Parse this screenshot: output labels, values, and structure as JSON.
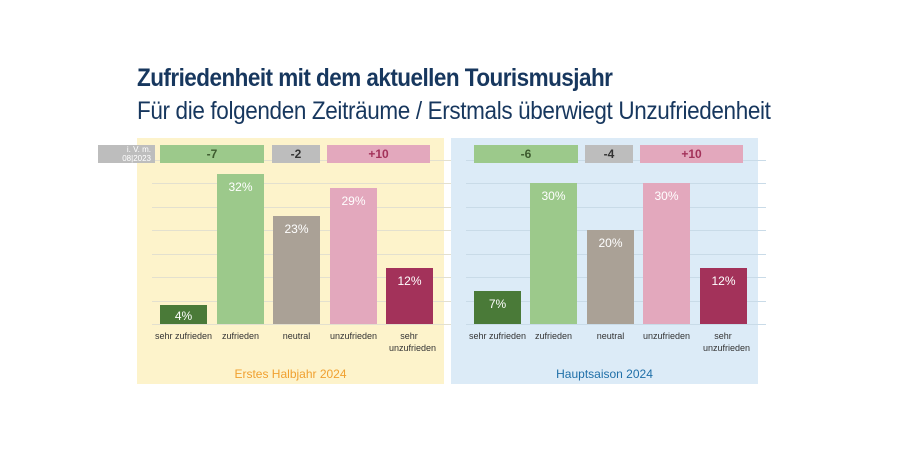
{
  "title": "Zufriedenheit mit dem aktuellen Tourismusjahr",
  "subtitle": "Für die folgenden Zeiträume / Erstmals überwiegt Unzufriedenheit",
  "comparison_note": {
    "line1": "i. V. m.",
    "line2": "08|2023"
  },
  "colors": {
    "sehr_zufrieden": "#4a7a38",
    "zufrieden": "#9cc98b",
    "neutral": "#aaa196",
    "unzufrieden": "#e3a8bd",
    "sehr_unzufrieden": "#a3325a",
    "panel_left": "#fdf3cb",
    "panel_right": "#dcebf7",
    "title": "#17375e"
  },
  "chart_data": [
    {
      "type": "bar",
      "title": "Erstes Halbjahr 2024",
      "title_color": "#f0a030",
      "categories": [
        "sehr zufrieden",
        "zufrieden",
        "neutral",
        "unzufrieden",
        "sehr unzufrieden"
      ],
      "values": [
        4,
        32,
        23,
        29,
        12
      ],
      "value_labels": [
        "4%",
        "32%",
        "23%",
        "29%",
        "12%"
      ],
      "ylim": [
        0,
        35
      ],
      "grid": true,
      "changes_vs_08_2023": [
        {
          "label": "-7",
          "group": "zufrieden"
        },
        {
          "label": "-2",
          "group": "neutral"
        },
        {
          "label": "+10",
          "group": "unzufrieden"
        }
      ]
    },
    {
      "type": "bar",
      "title": "Hauptsaison 2024",
      "title_color": "#1f6fa8",
      "categories": [
        "sehr zufrieden",
        "zufrieden",
        "neutral",
        "unzufrieden",
        "sehr unzufrieden"
      ],
      "values": [
        7,
        30,
        20,
        30,
        12
      ],
      "value_labels": [
        "7%",
        "30%",
        "20%",
        "30%",
        "12%"
      ],
      "ylim": [
        0,
        35
      ],
      "grid": true,
      "changes_vs_08_2023": [
        {
          "label": "-6",
          "group": "zufrieden"
        },
        {
          "label": "-4",
          "group": "neutral"
        },
        {
          "label": "+10",
          "group": "unzufrieden"
        }
      ]
    }
  ]
}
